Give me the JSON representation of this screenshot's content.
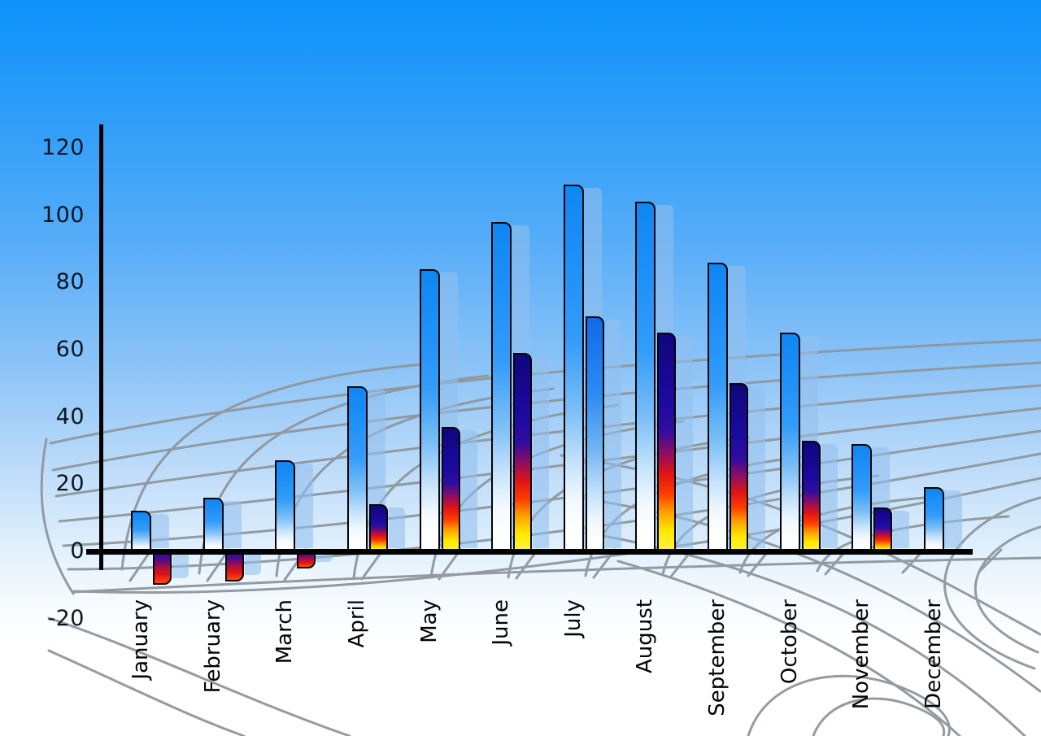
{
  "chart_data": {
    "type": "bar",
    "title": "",
    "xlabel": "",
    "ylabel": "",
    "categories": [
      "January",
      "February",
      "March",
      "April",
      "May",
      "June",
      "July",
      "August",
      "September",
      "October",
      "November",
      "December"
    ],
    "series": [
      {
        "name": "primary-blue-bars",
        "values": [
          12,
          16,
          27,
          49,
          84,
          98,
          109,
          104,
          86,
          65,
          32,
          19
        ]
      },
      {
        "name": "secondary-flame-bars",
        "values": [
          -10,
          -9,
          -5,
          14,
          37,
          59,
          70,
          65,
          50,
          33,
          13,
          null
        ]
      }
    ],
    "ylim": [
      -20,
      120
    ],
    "yticks": [
      120,
      100,
      80,
      60,
      40,
      20,
      0,
      -20
    ],
    "legend_position": "none",
    "grid": "decorative curved perspective mesh",
    "notes": "Each bar has a translucent light-blue drop-shadow copy offset to the right; July secondary bar is blue-gradient instead of flame-gradient; December has no secondary bar; Jan-Mar secondary bars are negative."
  },
  "colors": {
    "sky_top": "#0d92fa",
    "sky_bottom": "#ffffff",
    "bar_blue": "#1e90f8",
    "flame_navy": "#16088c",
    "flame_red": "#e01414",
    "flame_yellow": "#ffe800",
    "july_alt_blue": "#0f6ae8",
    "bar_shadow": "#a9cdf0",
    "mesh": "#8e979e",
    "axis": "#000000",
    "tick_text": "#0b1522",
    "month_text": "#040404"
  }
}
